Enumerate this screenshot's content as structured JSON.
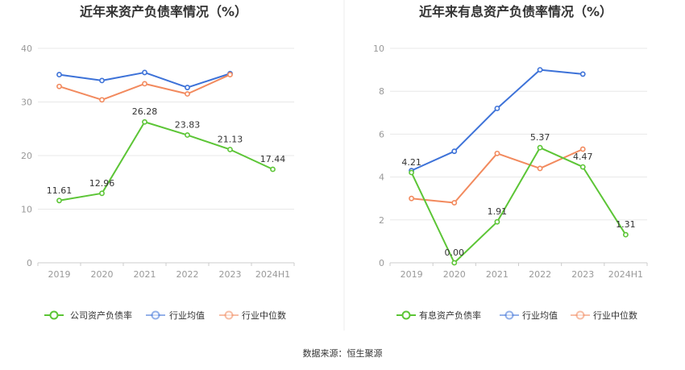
{
  "footer": {
    "source": "数据来源：恒生聚源"
  },
  "colors": {
    "company": "#5cc536",
    "avg": "#3d72d8",
    "median": "#f28a5e",
    "grid": "#e8e8e8",
    "axis": "#cccccc"
  },
  "chart_data": [
    {
      "type": "line",
      "title": "近年来资产负债率情况（%）",
      "categories": [
        "2019",
        "2020",
        "2021",
        "2022",
        "2023",
        "2024H1"
      ],
      "ylim": [
        0,
        40
      ],
      "yticks": [
        0,
        10,
        20,
        30,
        40
      ],
      "grid": true,
      "legend_position": "bottom",
      "series": [
        {
          "name": "公司资产负债率",
          "color": "#5cc536",
          "values": [
            11.61,
            12.96,
            26.28,
            23.83,
            21.13,
            17.44
          ],
          "labels": [
            "11.61",
            "12.96",
            "26.28",
            "23.83",
            "21.13",
            "17.44"
          ]
        },
        {
          "name": "行业均值",
          "color": "#3d72d8",
          "values": [
            35.1,
            34.0,
            35.5,
            32.7,
            35.3,
            null
          ]
        },
        {
          "name": "行业中位数",
          "color": "#f28a5e",
          "values": [
            32.9,
            30.4,
            33.4,
            31.5,
            35.1,
            null
          ]
        }
      ]
    },
    {
      "type": "line",
      "title": "近年来有息资产负债率情况（%）",
      "categories": [
        "2019",
        "2020",
        "2021",
        "2022",
        "2023",
        "2024H1"
      ],
      "ylim": [
        0,
        10
      ],
      "yticks": [
        0,
        2,
        4,
        6,
        8,
        10
      ],
      "grid": true,
      "legend_position": "bottom",
      "series": [
        {
          "name": "有息资产负债率",
          "color": "#5cc536",
          "values": [
            4.21,
            0.0,
            1.91,
            5.37,
            4.47,
            1.31
          ],
          "labels": [
            "4.21",
            "0.00",
            "1.91",
            "5.37",
            "4.47",
            "1.31"
          ]
        },
        {
          "name": "行业均值",
          "color": "#3d72d8",
          "values": [
            4.3,
            5.2,
            7.2,
            9.0,
            8.8,
            null
          ]
        },
        {
          "name": "行业中位数",
          "color": "#f28a5e",
          "values": [
            3.0,
            2.8,
            5.1,
            4.4,
            5.3,
            null
          ]
        }
      ]
    }
  ]
}
